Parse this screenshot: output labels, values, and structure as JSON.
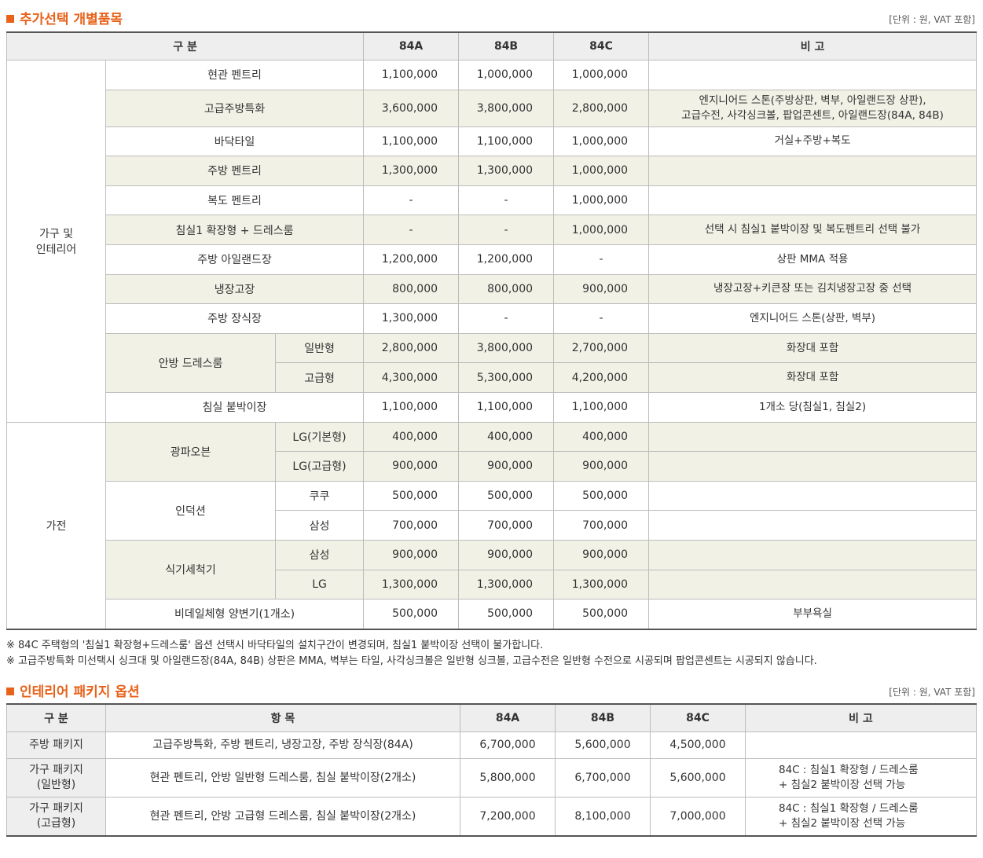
{
  "section1": {
    "title": "추가선택 개별품목",
    "unit": "[단위 : 원, VAT 포함]",
    "headers": {
      "category": "구 분",
      "a": "84A",
      "b": "84B",
      "c": "84C",
      "note": "비 고"
    },
    "group1_label": "가구 및\n인테리어",
    "group2_label": "가전",
    "rows": [
      {
        "item": "현관 펜트리",
        "a": "1,100,000",
        "b": "1,000,000",
        "c": "1,000,000",
        "note": ""
      },
      {
        "item": "고급주방특화",
        "a": "3,600,000",
        "b": "3,800,000",
        "c": "2,800,000",
        "note": "엔지니어드 스톤(주방상판, 벽부, 아일랜드장 상판),\n고급수전, 사각싱크볼, 팝업콘센트, 아일랜드장(84A, 84B)"
      },
      {
        "item": "바닥타일",
        "a": "1,100,000",
        "b": "1,100,000",
        "c": "1,000,000",
        "note": "거실+주방+복도"
      },
      {
        "item": "주방 펜트리",
        "a": "1,300,000",
        "b": "1,300,000",
        "c": "1,000,000",
        "note": ""
      },
      {
        "item": "복도 펜트리",
        "a": "-",
        "b": "-",
        "c": "1,000,000",
        "note": ""
      },
      {
        "item": "침실1 확장형 + 드레스룸",
        "a": "-",
        "b": "-",
        "c": "1,000,000",
        "note": "선택 시 침실1 붙박이장 및 복도펜트리 선택 불가"
      },
      {
        "item": "주방 아일랜드장",
        "a": "1,200,000",
        "b": "1,200,000",
        "c": "-",
        "note": "상판 MMA 적용"
      },
      {
        "item": "냉장고장",
        "a": "800,000",
        "b": "800,000",
        "c": "900,000",
        "note": "냉장고장+키큰장 또는 김치냉장고장 중 선택"
      },
      {
        "item": "주방 장식장",
        "a": "1,300,000",
        "b": "-",
        "c": "-",
        "note": "엔지니어드 스톤(상판, 벽부)"
      },
      {
        "item": "안방 드레스룸",
        "sub": "일반형",
        "a": "2,800,000",
        "b": "3,800,000",
        "c": "2,700,000",
        "note": "화장대 포함"
      },
      {
        "sub": "고급형",
        "a": "4,300,000",
        "b": "5,300,000",
        "c": "4,200,000",
        "note": "화장대 포함"
      },
      {
        "item": "침실 붙박이장",
        "a": "1,100,000",
        "b": "1,100,000",
        "c": "1,100,000",
        "note": "1개소 당(침실1, 침실2)"
      },
      {
        "item": "광파오븐",
        "sub": "LG(기본형)",
        "a": "400,000",
        "b": "400,000",
        "c": "400,000",
        "note": ""
      },
      {
        "sub": "LG(고급형)",
        "a": "900,000",
        "b": "900,000",
        "c": "900,000",
        "note": ""
      },
      {
        "item": "인덕션",
        "sub": "쿠쿠",
        "a": "500,000",
        "b": "500,000",
        "c": "500,000",
        "note": ""
      },
      {
        "sub": "삼성",
        "a": "700,000",
        "b": "700,000",
        "c": "700,000",
        "note": ""
      },
      {
        "item": "식기세척기",
        "sub": "삼성",
        "a": "900,000",
        "b": "900,000",
        "c": "900,000",
        "note": ""
      },
      {
        "sub": "LG",
        "a": "1,300,000",
        "b": "1,300,000",
        "c": "1,300,000",
        "note": ""
      },
      {
        "item": "비데일체형 양변기(1개소)",
        "a": "500,000",
        "b": "500,000",
        "c": "500,000",
        "note": "부부욕실"
      }
    ],
    "footnotes": [
      "※ 84C 주택형의 '침실1 확장형+드레스룸' 옵션 선택시 바닥타일의 설치구간이 변경되며, 침실1 붙박이장 선택이 불가합니다.",
      "※ 고급주방특화 미선택시 싱크대 및 아일랜드장(84A, 84B) 상판은 MMA, 벽부는 타일, 사각싱크볼은 일반형 싱크볼, 고급수전은 일반형 수전으로 시공되며 팝업콘센트는 시공되지 않습니다."
    ]
  },
  "section2": {
    "title": "인테리어 패키지 옵션",
    "unit": "[단위 : 원, VAT 포함]",
    "headers": {
      "category": "구 분",
      "items": "항 목",
      "a": "84A",
      "b": "84B",
      "c": "84C",
      "note": "비 고"
    },
    "rows": [
      {
        "name": "주방 패키지",
        "items": "고급주방특화, 주방 펜트리, 냉장고장, 주방 장식장(84A)",
        "a": "6,700,000",
        "b": "5,600,000",
        "c": "4,500,000",
        "note": ""
      },
      {
        "name": "가구 패키지\n(일반형)",
        "items": "현관 펜트리, 안방 일반형 드레스룸, 침실 붙박이장(2개소)",
        "a": "5,800,000",
        "b": "6,700,000",
        "c": "5,600,000",
        "note": "84C : 침실1 확장형 / 드레스룸\n+ 침실2 붙박이장 선택 가능"
      },
      {
        "name": "가구 패키지\n(고급형)",
        "items": "현관 펜트리, 안방 고급형 드레스룸, 침실 붙박이장(2개소)",
        "a": "7,200,000",
        "b": "8,100,000",
        "c": "7,000,000",
        "note": "84C : 침실1 확장형 / 드레스룸\n+ 침실2 붙박이장 선택 가능"
      }
    ]
  }
}
